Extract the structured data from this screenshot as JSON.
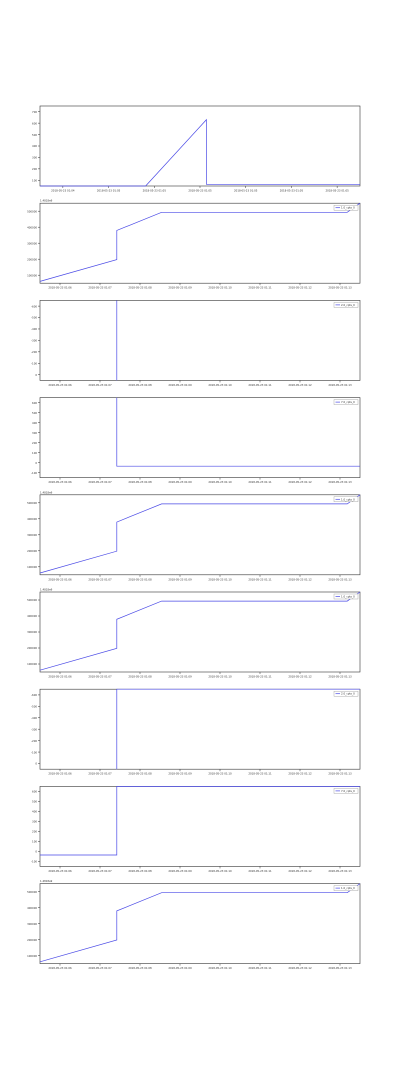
{
  "chart_data": [
    {
      "type": "line",
      "title": "",
      "xlabel": "",
      "ylabel": "",
      "grid": false,
      "legend_position": "none",
      "offset_label": "",
      "x_ticks": [
        "2018-05-23 01:04",
        "2018-05-23 01:05",
        "2018-05-23 01:05",
        "2018-05-23 01:05",
        "2018-05-23 01:05",
        "2018-05-23 01:05",
        "2018-05-23 01:05"
      ],
      "y_ticks": [
        "100",
        "200",
        "300",
        "400",
        "500",
        "600",
        "700"
      ],
      "ylim": [
        0,
        700
      ],
      "series": [
        {
          "color": "#4a4ae6",
          "x": [
            0,
            0.33,
            0.52,
            0.52,
            1.0
          ],
          "y": [
            0,
            0,
            580,
            15,
            15
          ]
        }
      ]
    },
    {
      "type": "line",
      "title": "",
      "xlabel": "",
      "ylabel": "",
      "grid": false,
      "legend_position": "top-right",
      "offset_label": "1.4818e9",
      "x_ticks": [
        "2018-05-23 01:06",
        "2018-05-23 01:07",
        "2018-05-23 01:08",
        "2018-05-23 01:09",
        "2018-05-23 01:10",
        "2018-05-23 01:11",
        "2018-05-23 01:12",
        "2018-05-23 01:13"
      ],
      "y_ticks": [
        "100000",
        "200000",
        "300000",
        "400000",
        "500000"
      ],
      "ylim": [
        80000,
        520000
      ],
      "series": [
        {
          "name": "1.0_cpts_0",
          "color": "#4a4ae6",
          "x": [
            0,
            0.24,
            0.24,
            0.38,
            0.96,
            1.0
          ],
          "y": [
            90000,
            210000,
            370000,
            470000,
            470000,
            520000
          ]
        }
      ]
    },
    {
      "type": "line",
      "title": "",
      "xlabel": "",
      "ylabel": "",
      "grid": false,
      "legend_position": "top-right",
      "offset_label": "",
      "x_ticks": [
        "2018-05-23 01:06",
        "2018-05-23 01:07",
        "2018-05-23 01:08",
        "2018-05-23 01:09",
        "2018-05-23 01:10",
        "2018-05-23 01:11",
        "2018-05-23 01:12",
        "2018-05-23 01:13"
      ],
      "y_ticks": [
        "0",
        "-100",
        "-200",
        "-300",
        "-400",
        "-500",
        "-600"
      ],
      "ylim": [
        -600,
        0
      ],
      "series": [
        {
          "name": "2.0_cpts_0",
          "color": "#4a4ae6",
          "x": [
            0.24,
            0.24
          ],
          "y": [
            0,
            -600
          ]
        }
      ]
    },
    {
      "type": "line",
      "title": "",
      "xlabel": "",
      "ylabel": "",
      "grid": false,
      "legend_position": "top-right",
      "offset_label": "",
      "x_ticks": [
        "2018-05-23 01:06",
        "2018-05-23 01:07",
        "2018-05-23 01:08",
        "2018-05-23 01:09",
        "2018-05-23 01:10",
        "2018-05-23 01:11",
        "2018-05-23 01:12",
        "2018-05-23 01:13"
      ],
      "y_ticks": [
        "-100",
        "0",
        "100",
        "200",
        "300",
        "400",
        "500",
        "600"
      ],
      "ylim": [
        -100,
        600
      ],
      "series": [
        {
          "name": "7.0_cpts_0",
          "color": "#4a4ae6",
          "x": [
            0.24,
            0.24,
            1.0
          ],
          "y": [
            600,
            0,
            0
          ]
        }
      ]
    },
    {
      "type": "line",
      "title": "",
      "xlabel": "",
      "ylabel": "",
      "grid": false,
      "legend_position": "top-right",
      "offset_label": "1.4818e9",
      "x_ticks": [
        "2018-05-23 01:06",
        "2018-05-23 01:07",
        "2018-05-23 01:08",
        "2018-05-23 01:09",
        "2018-05-23 01:10",
        "2018-05-23 01:11",
        "2018-05-23 01:12",
        "2018-05-23 01:13"
      ],
      "y_ticks": [
        "100000",
        "200000",
        "300000",
        "400000",
        "500000"
      ],
      "ylim": [
        80000,
        520000
      ],
      "series": [
        {
          "name": "1.0_cpts_0",
          "color": "#4a4ae6",
          "x": [
            0,
            0.24,
            0.24,
            0.38,
            0.96,
            1.0
          ],
          "y": [
            90000,
            210000,
            370000,
            470000,
            470000,
            520000
          ]
        }
      ]
    },
    {
      "type": "line",
      "title": "",
      "xlabel": "",
      "ylabel": "",
      "grid": false,
      "legend_position": "top-right",
      "offset_label": "1.4818e9",
      "x_ticks": [
        "2018-05-23 01:06",
        "2018-05-23 01:07",
        "2018-05-23 01:08",
        "2018-05-23 01:09",
        "2018-05-23 01:10",
        "2018-05-23 01:11",
        "2018-05-23 01:12",
        "2018-05-23 01:13"
      ],
      "y_ticks": [
        "100000",
        "200000",
        "300000",
        "400000",
        "500000"
      ],
      "ylim": [
        80000,
        520000
      ],
      "series": [
        {
          "name": "1.0_cpts_0",
          "color": "#4a4ae6",
          "x": [
            0,
            0.24,
            0.24,
            0.38,
            0.96,
            1.0
          ],
          "y": [
            90000,
            210000,
            370000,
            470000,
            470000,
            520000
          ]
        }
      ]
    },
    {
      "type": "line",
      "title": "",
      "xlabel": "",
      "ylabel": "",
      "grid": false,
      "legend_position": "top-right",
      "offset_label": "",
      "x_ticks": [
        "2018-05-23 01:06",
        "2018-05-23 01:07",
        "2018-05-23 01:08",
        "2018-05-23 01:09",
        "2018-05-23 01:10",
        "2018-05-23 01:11",
        "2018-05-23 01:12",
        "2018-05-23 01:13"
      ],
      "y_ticks": [
        "0",
        "-100",
        "-200",
        "-300",
        "-400",
        "-500",
        "-600"
      ],
      "ylim": [
        -600,
        0
      ],
      "series": [
        {
          "name": "2.0_cpts_0",
          "color": "#4a4ae6",
          "x": [
            0.24,
            0.24,
            1.0
          ],
          "y": [
            -600,
            0,
            0
          ]
        }
      ]
    },
    {
      "type": "line",
      "title": "",
      "xlabel": "",
      "ylabel": "",
      "grid": false,
      "legend_position": "top-right",
      "offset_label": "",
      "x_ticks": [
        "2018-05-23 01:06",
        "2018-05-23 01:07",
        "2018-05-23 01:08",
        "2018-05-23 01:09",
        "2018-05-23 01:10",
        "2018-05-23 01:11",
        "2018-05-23 01:12",
        "2018-05-23 01:13"
      ],
      "y_ticks": [
        "-100",
        "0",
        "100",
        "200",
        "300",
        "400",
        "500",
        "600"
      ],
      "ylim": [
        -100,
        600
      ],
      "series": [
        {
          "name": "7.0_cpts_0",
          "color": "#4a4ae6",
          "x": [
            0,
            0.24,
            0.24,
            1.0
          ],
          "y": [
            0,
            0,
            600,
            600
          ]
        }
      ]
    },
    {
      "type": "line",
      "title": "",
      "xlabel": "",
      "ylabel": "",
      "grid": false,
      "legend_position": "top-right",
      "offset_label": "1.4818e9",
      "x_ticks": [
        "2018-05-23 01:06",
        "2018-05-23 01:07",
        "2018-05-23 01:08",
        "2018-05-23 01:09",
        "2018-05-23 01:10",
        "2018-05-23 01:11",
        "2018-05-23 01:12",
        "2018-05-23 01:13"
      ],
      "y_ticks": [
        "100000",
        "200000",
        "300000",
        "400000",
        "500000"
      ],
      "ylim": [
        80000,
        520000
      ],
      "series": [
        {
          "name": "1.0_cpts_0",
          "color": "#4a4ae6",
          "x": [
            0,
            0.24,
            0.24,
            0.38,
            0.96,
            1.0
          ],
          "y": [
            90000,
            210000,
            370000,
            470000,
            470000,
            520000
          ]
        }
      ]
    }
  ]
}
